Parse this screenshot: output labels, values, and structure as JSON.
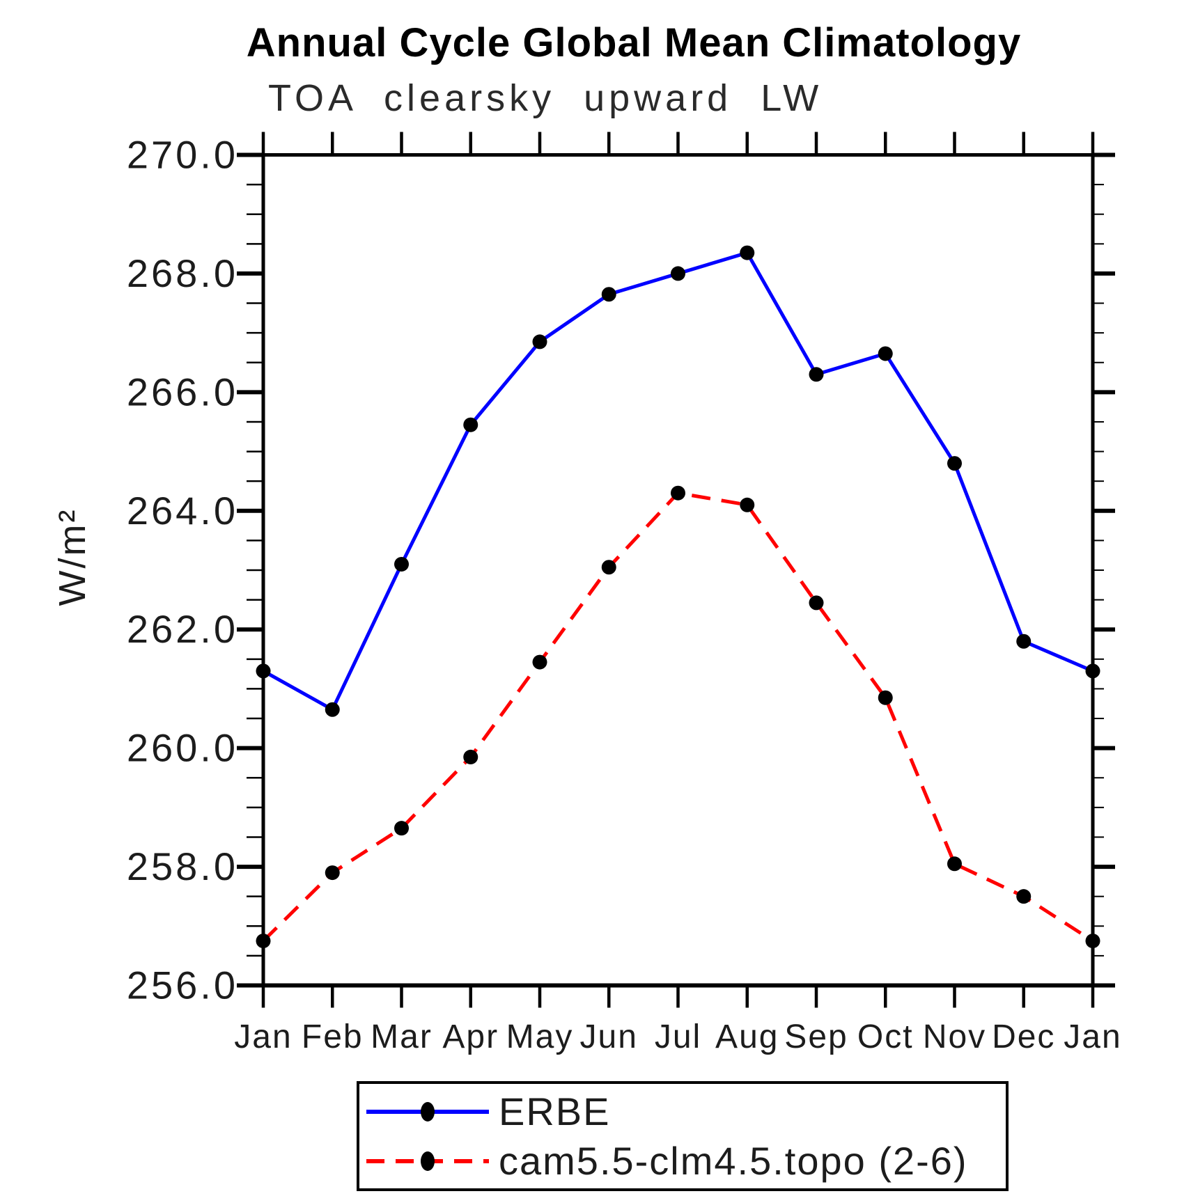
{
  "page": {
    "background": "#ffffff"
  },
  "chart_data": {
    "type": "line",
    "title": "Annual Cycle Global Mean Climatology",
    "subtitle": "TOA clearsky upward LW",
    "ylabel": "W/m²",
    "xlabel": "",
    "categories": [
      "Jan",
      "Feb",
      "Mar",
      "Apr",
      "May",
      "Jun",
      "Jul",
      "Aug",
      "Sep",
      "Oct",
      "Nov",
      "Dec",
      "Jan"
    ],
    "ylim": [
      256.0,
      270.0
    ],
    "ytick_step": 2.0,
    "yminor_step": 0.5,
    "ytick_labels": [
      "256.0",
      "258.0",
      "260.0",
      "262.0",
      "264.0",
      "266.0",
      "268.0",
      "270.0"
    ],
    "grid": false,
    "legend_position": "bottom-center",
    "axis_color": "#000000",
    "marker_color": "#000000",
    "series": [
      {
        "name": "ERBE",
        "color": "#0000ff",
        "line_style": "solid",
        "marker": "filled-circle",
        "values": [
          261.3,
          260.65,
          263.1,
          265.45,
          266.85,
          267.65,
          268.0,
          268.35,
          266.3,
          266.65,
          264.8,
          261.8,
          261.3
        ]
      },
      {
        "name": "cam5.5-clm4.5.topo (2-6)",
        "color": "#ff0000",
        "line_style": "dashed",
        "marker": "filled-circle",
        "values": [
          256.75,
          257.9,
          258.65,
          259.85,
          261.45,
          263.05,
          264.3,
          264.1,
          262.45,
          260.85,
          258.05,
          257.5,
          256.75
        ]
      }
    ]
  }
}
